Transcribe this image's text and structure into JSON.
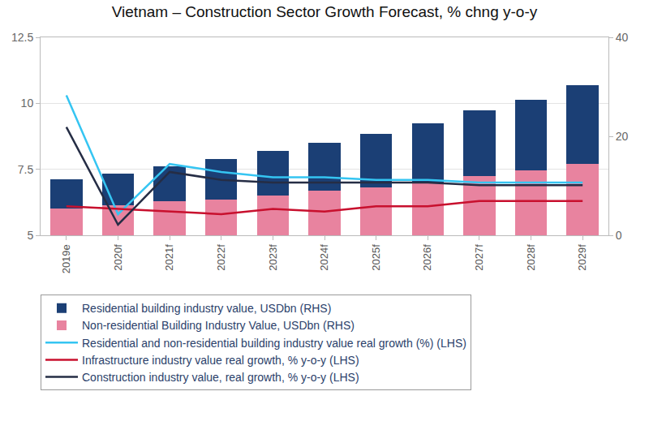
{
  "chart_data": {
    "type": "bar",
    "title": "Vietnam – Construction Sector Growth Forecast, % chng y-o-y",
    "categories": [
      "2019e",
      "2020f",
      "2021f",
      "2022f",
      "2023f",
      "2024f",
      "2025f",
      "2026f",
      "2027f",
      "2028f",
      "2029f"
    ],
    "series": [
      {
        "name": "Residential building industry value, USDbn (RHS)",
        "type": "bar",
        "axis": "y2",
        "color": "#1b3f75",
        "values": [
          5.9,
          6.5,
          7.0,
          8.2,
          9.0,
          9.7,
          10.9,
          11.9,
          13.3,
          14.3,
          15.9
        ]
      },
      {
        "name": "Non-residential Building Industry Value, USDbn (RHS)",
        "type": "bar",
        "axis": "y2",
        "color": "#e8839f",
        "values": [
          5.4,
          6.0,
          6.9,
          7.2,
          8.0,
          9.0,
          9.6,
          10.7,
          12.0,
          13.1,
          14.4
        ]
      },
      {
        "name": "Residential and non-residential building industry value real growth (%) (LHS)",
        "type": "line",
        "color": "#35c5f2",
        "values": [
          10.3,
          5.8,
          7.7,
          7.4,
          7.2,
          7.2,
          7.1,
          7.1,
          7.0,
          7.0,
          7.0
        ]
      },
      {
        "name": "Infrastructure industry value real growth, % y-o-y (LHS)",
        "type": "line",
        "color": "#c8102e",
        "values": [
          6.1,
          6.0,
          5.9,
          5.8,
          6.0,
          5.9,
          6.1,
          6.1,
          6.3,
          6.3,
          6.3
        ]
      },
      {
        "name": "Construction industry value, real growth, % y-o-y (LHS)",
        "type": "line",
        "color": "#252d45",
        "values": [
          9.1,
          5.4,
          7.4,
          7.1,
          7.0,
          7.0,
          7.0,
          7.0,
          6.9,
          6.9,
          6.9
        ]
      }
    ],
    "ylim": [
      5,
      12.5
    ],
    "yticks": [
      5,
      7.5,
      10,
      12.5
    ],
    "y2lim": [
      0,
      40
    ],
    "y2ticks": [
      0,
      20,
      40
    ],
    "stacked": true,
    "grid": true,
    "legend": "bottom"
  }
}
